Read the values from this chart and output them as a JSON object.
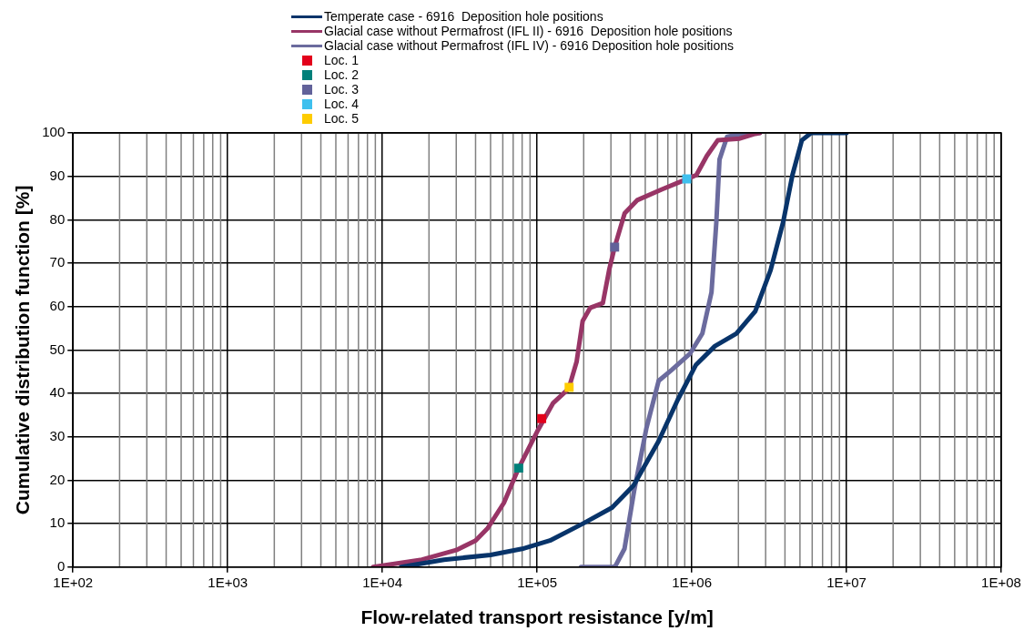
{
  "chart_data": {
    "type": "line",
    "xlabel": "Flow-related transport resistance [y/m]",
    "ylabel": "Cumulative distribution function [%]",
    "log": "x",
    "grid": true,
    "legend": "top",
    "xlim": [
      100,
      100000000
    ],
    "xticks": [
      {
        "value": 100,
        "label": "1E+02"
      },
      {
        "value": 1000,
        "label": "1E+03"
      },
      {
        "value": 10000,
        "label": "1E+04"
      },
      {
        "value": 100000,
        "label": "1E+05"
      },
      {
        "value": 1000000,
        "label": "1E+06"
      },
      {
        "value": 10000000,
        "label": "1E+07"
      },
      {
        "value": 100000000,
        "label": "1E+08"
      }
    ],
    "ylim": [
      0,
      100
    ],
    "yticks": [
      0,
      10,
      20,
      30,
      40,
      50,
      60,
      70,
      80,
      90,
      100
    ],
    "marker": "none",
    "line_style": "solid",
    "series": [
      {
        "name": "Temperate case - 6916  Deposition hole positions",
        "color": "#08346a",
        "x": [
          13200,
          25000,
          50000,
          80000,
          121000,
          200000,
          305000,
          420000,
          610000,
          810000,
          1060000,
          1410000,
          1940000,
          2570000,
          3230000,
          3890000,
          4470000,
          5140000,
          5900000,
          10000000
        ],
        "values": [
          0,
          1.7,
          2.8,
          4.2,
          6.1,
          10.1,
          13.7,
          18.8,
          29.0,
          38.5,
          46.5,
          50.9,
          53.8,
          58.9,
          68.4,
          79.4,
          90.3,
          98.3,
          100,
          100
        ]
      },
      {
        "name": "Glacial case without Permafrost (IFL II) - 6916  Deposition hole positions",
        "color": "#983566",
        "x": [
          8700,
          18000,
          30000,
          40000,
          48000,
          61000,
          76000,
          100000,
          127000,
          160000,
          180000,
          197000,
          220000,
          266000,
          292000,
          317000,
          368000,
          443000,
          640000,
          850000,
          1070000,
          1250000,
          1470000,
          2040000,
          2570000,
          2750000
        ],
        "values": [
          0,
          1.7,
          3.9,
          6.1,
          9.0,
          14.8,
          22.8,
          31.2,
          37.8,
          41.1,
          47.3,
          56.7,
          59.7,
          60.8,
          68.4,
          73.7,
          81.5,
          84.5,
          87.0,
          88.8,
          90.3,
          94.7,
          98.3,
          98.7,
          99.8,
          100
        ]
      },
      {
        "name": "Glacial case without Permafrost (IFL IV) - 6916 Deposition hole positions",
        "color": "#6b6b9e",
        "x": [
          192000,
          305000,
          320000,
          367000,
          423000,
          508000,
          610000,
          740000,
          970000,
          1170000,
          1340000,
          1440000,
          1510000,
          1690000,
          2230000,
          2750000
        ],
        "values": [
          0,
          0,
          0.2,
          4.2,
          17.4,
          31.9,
          42.9,
          45.4,
          49.1,
          53.8,
          63.3,
          79.4,
          93.9,
          99.1,
          100,
          100
        ]
      },
      {
        "name": "Loc. 1",
        "type": "scatter",
        "marker": "square",
        "color": "#e3001b",
        "x": [
          107000
        ],
        "values": [
          34.2
        ]
      },
      {
        "name": "Loc. 2",
        "type": "scatter",
        "marker": "square",
        "color": "#00807a",
        "x": [
          76000
        ],
        "values": [
          22.8
        ]
      },
      {
        "name": "Loc. 3",
        "type": "scatter",
        "marker": "square",
        "color": "#62629a",
        "x": [
          317000
        ],
        "values": [
          73.7
        ]
      },
      {
        "name": "Loc. 4",
        "type": "scatter",
        "marker": "square",
        "color": "#3fc0ee",
        "x": [
          927000
        ],
        "values": [
          89.4
        ]
      },
      {
        "name": "Loc. 5",
        "type": "scatter",
        "marker": "square",
        "color": "#fecc00",
        "x": [
          161000
        ],
        "values": [
          41.4
        ]
      }
    ]
  }
}
